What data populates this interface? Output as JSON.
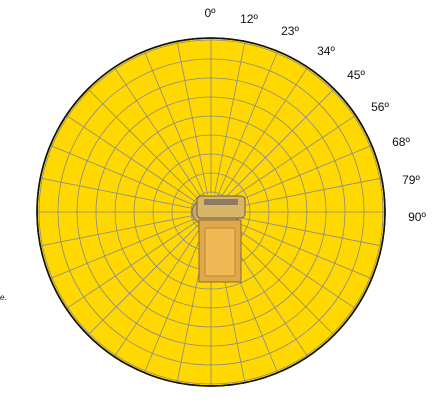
{
  "angle_labels": [
    "0º",
    "12º",
    "23º",
    "34º",
    "45º",
    "56º",
    "68º",
    "79º",
    "90º"
  ],
  "side_note": "e."
}
